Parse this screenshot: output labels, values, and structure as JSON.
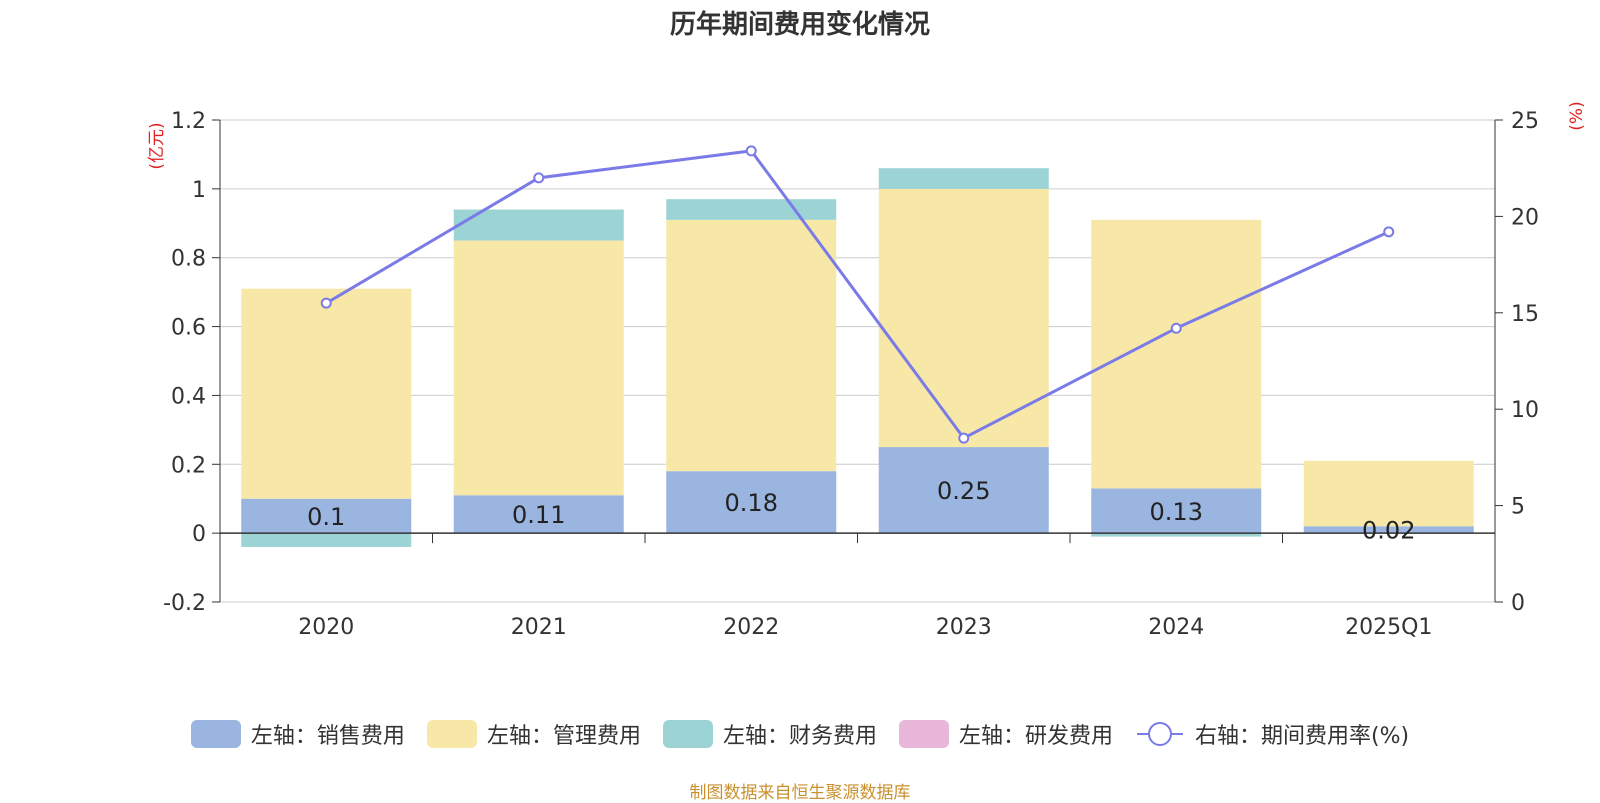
{
  "chart_data": {
    "type": "bar",
    "title": "历年期间费用变化情况",
    "categories": [
      "2020",
      "2021",
      "2022",
      "2023",
      "2024",
      "2025Q1"
    ],
    "left_axis": {
      "unit": "(亿元)",
      "ylim": [
        -0.2,
        1.2
      ],
      "ticks": [
        "-0.2",
        "0",
        "0.2",
        "0.4",
        "0.6",
        "0.8",
        "1",
        "1.2"
      ]
    },
    "right_axis": {
      "unit": "(%)",
      "ylim": [
        0,
        25
      ],
      "ticks": [
        "0",
        "5",
        "10",
        "15",
        "20",
        "25"
      ]
    },
    "series": [
      {
        "name": "左轴：销售费用",
        "type": "bar",
        "stack": "cost",
        "color": "#9ab6e0",
        "values": [
          0.1,
          0.11,
          0.18,
          0.25,
          0.13,
          0.02
        ],
        "labels": [
          "0.1",
          "0.11",
          "0.18",
          "0.25",
          "0.13",
          "0.02"
        ]
      },
      {
        "name": "左轴：管理费用",
        "type": "bar",
        "stack": "cost",
        "color": "#f8e8a8",
        "values": [
          0.61,
          0.74,
          0.73,
          0.75,
          0.78,
          0.19
        ]
      },
      {
        "name": "左轴：财务费用",
        "type": "bar",
        "stack": "cost",
        "color": "#9cd4d6",
        "values": [
          -0.04,
          0.09,
          0.06,
          0.06,
          -0.01,
          0.0
        ]
      },
      {
        "name": "左轴：研发费用",
        "type": "bar",
        "stack": "cost",
        "color": "#e8b6d8",
        "values": [
          0,
          0,
          0,
          0,
          0,
          0
        ]
      },
      {
        "name": "右轴：期间费用率(%)",
        "type": "line",
        "axis": "right",
        "color": "#7b7be8",
        "values": [
          15.5,
          22.0,
          23.4,
          8.5,
          14.2,
          19.2
        ]
      }
    ],
    "grid": true,
    "legend_position": "bottom"
  },
  "footer": "制图数据来自恒生聚源数据库"
}
